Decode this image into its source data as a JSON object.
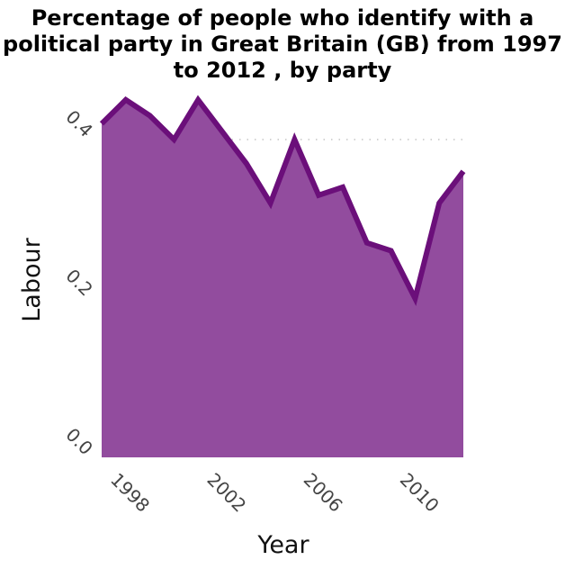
{
  "chart_data": {
    "type": "area",
    "title": "Percentage of people who identify with a political party in Great Britain (GB) from 1997 to 2012 , by party",
    "xlabel": "Year",
    "ylabel": "Labour",
    "x": [
      1997,
      1998,
      1999,
      2000,
      2001,
      2002,
      2003,
      2004,
      2005,
      2006,
      2007,
      2008,
      2009,
      2010,
      2011,
      2012
    ],
    "values": [
      0.42,
      0.45,
      0.43,
      0.4,
      0.45,
      0.41,
      0.37,
      0.32,
      0.4,
      0.33,
      0.34,
      0.27,
      0.26,
      0.2,
      0.32,
      0.36
    ],
    "xticks": [
      "1998",
      "2002",
      "2006",
      "2010"
    ],
    "yticks": [
      "0.0",
      "0.2",
      "0.4"
    ],
    "xlim": [
      1997,
      2012
    ],
    "ylim": [
      0,
      0.4
    ],
    "grid": "horizontal dotted",
    "fill_color": "#924c9e",
    "line_color": "#6b0f7a"
  }
}
